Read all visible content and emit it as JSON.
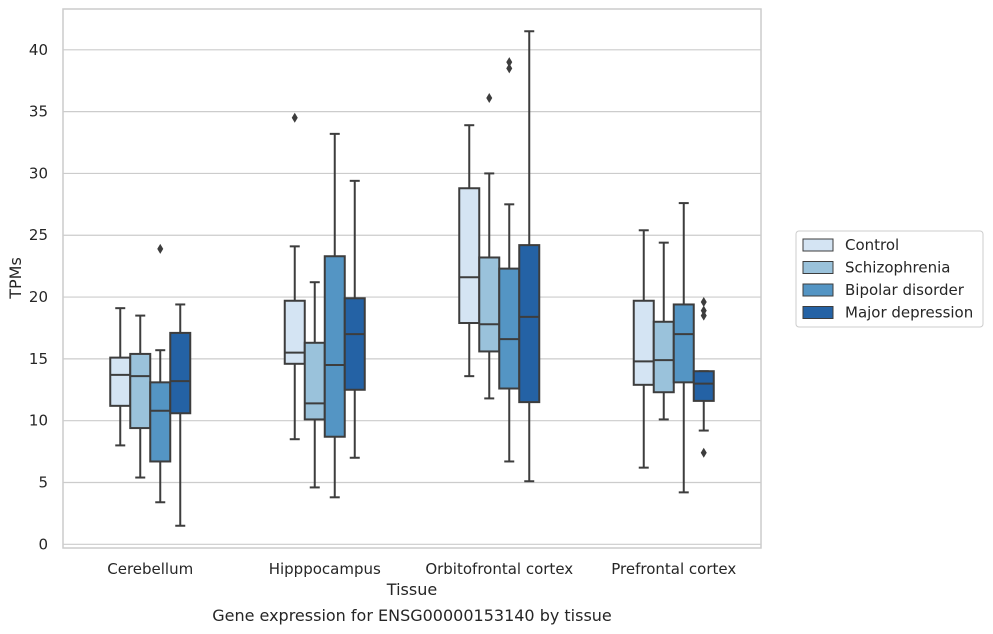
{
  "caption": "Gene expression for ENSG00000153140 by tissue",
  "chart_data": {
    "type": "box",
    "xlabel": "Tissue",
    "ylabel": "TPMs",
    "ylim": [
      -0.3,
      43.3
    ],
    "yticks": [
      0,
      5,
      10,
      15,
      20,
      25,
      30,
      35,
      40
    ],
    "grid": "horizontal",
    "legend_position": "right",
    "categories": [
      "Cerebellum",
      "Hipppocampus",
      "Orbitofrontal cortex",
      "Prefrontal cortex"
    ],
    "series": [
      {
        "name": "Control",
        "color": "#d4e4f3",
        "boxes": [
          {
            "whislo": 8.0,
            "q1": 11.2,
            "med": 13.7,
            "q3": 15.1,
            "whishi": 19.1,
            "fliers": []
          },
          {
            "whislo": 8.5,
            "q1": 14.6,
            "med": 15.5,
            "q3": 19.7,
            "whishi": 24.1,
            "fliers": [
              34.5
            ]
          },
          {
            "whislo": 13.6,
            "q1": 17.9,
            "med": 21.6,
            "q3": 28.8,
            "whishi": 33.9,
            "fliers": []
          },
          {
            "whislo": 6.2,
            "q1": 12.9,
            "med": 14.8,
            "q3": 19.7,
            "whishi": 25.4,
            "fliers": []
          }
        ]
      },
      {
        "name": "Schizophrenia",
        "color": "#9ac2db",
        "boxes": [
          {
            "whislo": 5.4,
            "q1": 9.4,
            "med": 13.6,
            "q3": 15.4,
            "whishi": 18.5,
            "fliers": []
          },
          {
            "whislo": 4.6,
            "q1": 10.1,
            "med": 11.4,
            "q3": 16.3,
            "whishi": 21.2,
            "fliers": []
          },
          {
            "whislo": 11.8,
            "q1": 15.6,
            "med": 17.8,
            "q3": 23.2,
            "whishi": 30.0,
            "fliers": [
              36.1
            ]
          },
          {
            "whislo": 10.1,
            "q1": 12.3,
            "med": 14.9,
            "q3": 18.0,
            "whishi": 24.4,
            "fliers": []
          }
        ]
      },
      {
        "name": "Bipolar disorder",
        "color": "#5495c4",
        "boxes": [
          {
            "whislo": 3.4,
            "q1": 6.7,
            "med": 10.8,
            "q3": 13.1,
            "whishi": 15.7,
            "fliers": [
              23.9
            ]
          },
          {
            "whislo": 3.8,
            "q1": 8.7,
            "med": 14.5,
            "q3": 23.3,
            "whishi": 33.2,
            "fliers": []
          },
          {
            "whislo": 6.7,
            "q1": 12.6,
            "med": 16.6,
            "q3": 22.3,
            "whishi": 27.5,
            "fliers": [
              38.5,
              39.0
            ]
          },
          {
            "whislo": 4.2,
            "q1": 13.1,
            "med": 17.0,
            "q3": 19.4,
            "whishi": 27.6,
            "fliers": []
          }
        ]
      },
      {
        "name": "Major depression",
        "color": "#2462a5",
        "boxes": [
          {
            "whislo": 1.5,
            "q1": 10.6,
            "med": 13.2,
            "q3": 17.1,
            "whishi": 19.4,
            "fliers": []
          },
          {
            "whislo": 7.0,
            "q1": 12.5,
            "med": 17.0,
            "q3": 19.9,
            "whishi": 29.4,
            "fliers": []
          },
          {
            "whislo": 5.1,
            "q1": 11.5,
            "med": 18.4,
            "q3": 24.2,
            "whishi": 41.5,
            "fliers": []
          },
          {
            "whislo": 9.2,
            "q1": 11.6,
            "med": 13.0,
            "q3": 14.0,
            "whishi": 14.0,
            "fliers": [
              18.5,
              18.9,
              19.6,
              7.4
            ]
          }
        ]
      }
    ]
  }
}
